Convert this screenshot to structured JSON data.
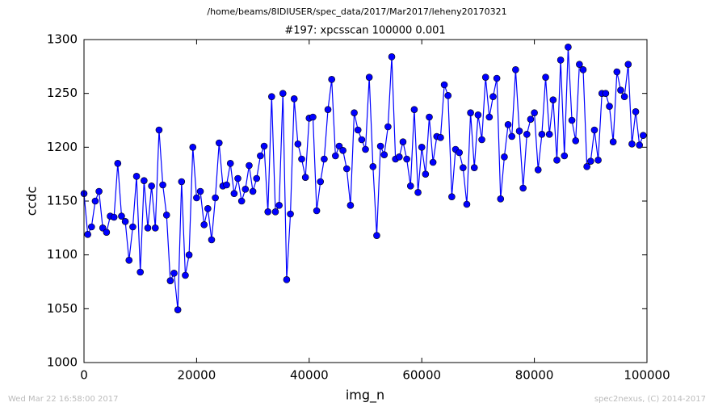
{
  "chart_data": {
    "type": "line",
    "suptitle": "/home/beams/8IDIUSER/spec_data/2017/Mar2017/leheny20170321",
    "title": "#197: xpcsscan 100000 0.001",
    "xlabel": "img_n",
    "ylabel": "ccdc",
    "footer_left": "Wed Mar 22 16:58:00 2017",
    "footer_right": "spec2nexus, (C) 2014-2017",
    "xlim": [
      0,
      100000
    ],
    "xticks": [
      0,
      20000,
      40000,
      60000,
      80000,
      100000
    ],
    "ylim": [
      1000,
      1300
    ],
    "yticks": [
      1000,
      1050,
      1100,
      1150,
      1200,
      1250,
      1300
    ],
    "grid": false,
    "marker": "circle",
    "x": [
      0,
      667,
      1333,
      2000,
      2667,
      3333,
      4000,
      4667,
      5333,
      6000,
      6667,
      7333,
      8000,
      8667,
      9333,
      10000,
      10667,
      11333,
      12000,
      12667,
      13333,
      14000,
      14667,
      15333,
      16000,
      16667,
      17333,
      18000,
      18667,
      19333,
      20000,
      20667,
      21333,
      22000,
      22667,
      23333,
      24000,
      24667,
      25333,
      26000,
      26667,
      27333,
      28000,
      28667,
      29333,
      30000,
      30667,
      31333,
      32000,
      32667,
      33333,
      34000,
      34667,
      35333,
      36000,
      36667,
      37333,
      38000,
      38667,
      39333,
      40000,
      40667,
      41333,
      42000,
      42667,
      43333,
      44000,
      44667,
      45333,
      46000,
      46667,
      47333,
      48000,
      48667,
      49333,
      50000,
      50667,
      51333,
      52000,
      52667,
      53333,
      54000,
      54667,
      55333,
      56000,
      56667,
      57333,
      58000,
      58667,
      59333,
      60000,
      60667,
      61333,
      62000,
      62667,
      63333,
      64000,
      64667,
      65333,
      66000,
      66667,
      67333,
      68000,
      68667,
      69333,
      70000,
      70667,
      71333,
      72000,
      72667,
      73333,
      74000,
      74667,
      75333,
      76000,
      76667,
      77333,
      78000,
      78667,
      79333,
      80000,
      80667,
      81333,
      82000,
      82667,
      83333,
      84000,
      84667,
      85333,
      86000,
      86667,
      87333,
      88000,
      88667,
      89333,
      90000,
      90667,
      91333,
      92000,
      92667,
      93333,
      94000,
      94667,
      95333,
      96000,
      96667,
      97333,
      98000,
      98667,
      99333
    ],
    "series": [
      {
        "name": "ccdc",
        "color": "#0000ff",
        "values": [
          1157,
          1119,
          1126,
          1150,
          1159,
          1125,
          1121,
          1136,
          1135,
          1185,
          1136,
          1131,
          1095,
          1126,
          1173,
          1084,
          1169,
          1125,
          1164,
          1125,
          1216,
          1165,
          1137,
          1076,
          1083,
          1049,
          1168,
          1081,
          1100,
          1200,
          1153,
          1159,
          1128,
          1143,
          1114,
          1153,
          1204,
          1164,
          1165,
          1185,
          1157,
          1171,
          1150,
          1161,
          1183,
          1159,
          1171,
          1192,
          1201,
          1140,
          1247,
          1140,
          1146,
          1250,
          1077,
          1138,
          1245,
          1203,
          1189,
          1172,
          1227,
          1228,
          1141,
          1168,
          1189,
          1235,
          1263,
          1192,
          1201,
          1197,
          1180,
          1146,
          1232,
          1216,
          1207,
          1198,
          1265,
          1182,
          1118,
          1201,
          1193,
          1219,
          1284,
          1189,
          1191,
          1205,
          1189,
          1164,
          1235,
          1158,
          1200,
          1175,
          1228,
          1186,
          1210,
          1209,
          1258,
          1248,
          1154,
          1198,
          1195,
          1181,
          1147,
          1232,
          1181,
          1230,
          1207,
          1265,
          1228,
          1247,
          1264,
          1152,
          1191,
          1221,
          1210,
          1272,
          1215,
          1162,
          1212,
          1226,
          1232,
          1179,
          1212,
          1265,
          1212,
          1244,
          1188,
          1281,
          1192,
          1293,
          1225,
          1206,
          1277,
          1272,
          1182,
          1187,
          1216,
          1188,
          1250,
          1250,
          1238,
          1205,
          1270,
          1253,
          1247,
          1277,
          1203,
          1233,
          1202,
          1211
        ]
      }
    ]
  }
}
